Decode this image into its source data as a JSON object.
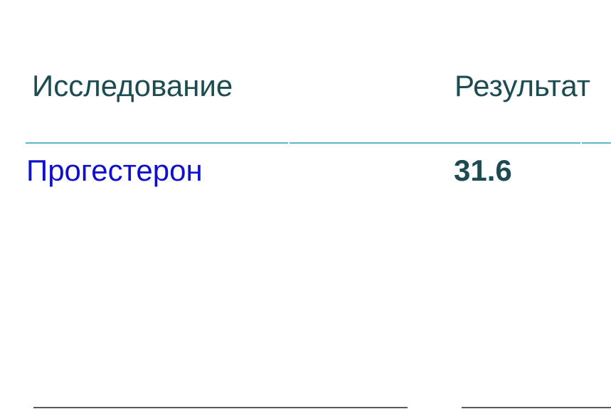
{
  "table": {
    "headers": [
      "Исследование",
      "Результат"
    ],
    "rows": [
      {
        "test": "Прогестерон",
        "result": "31.6"
      }
    ]
  },
  "colors": {
    "header_text": "#1c4b52",
    "link_text": "#1010cc",
    "rule": "#5fb6c4"
  }
}
